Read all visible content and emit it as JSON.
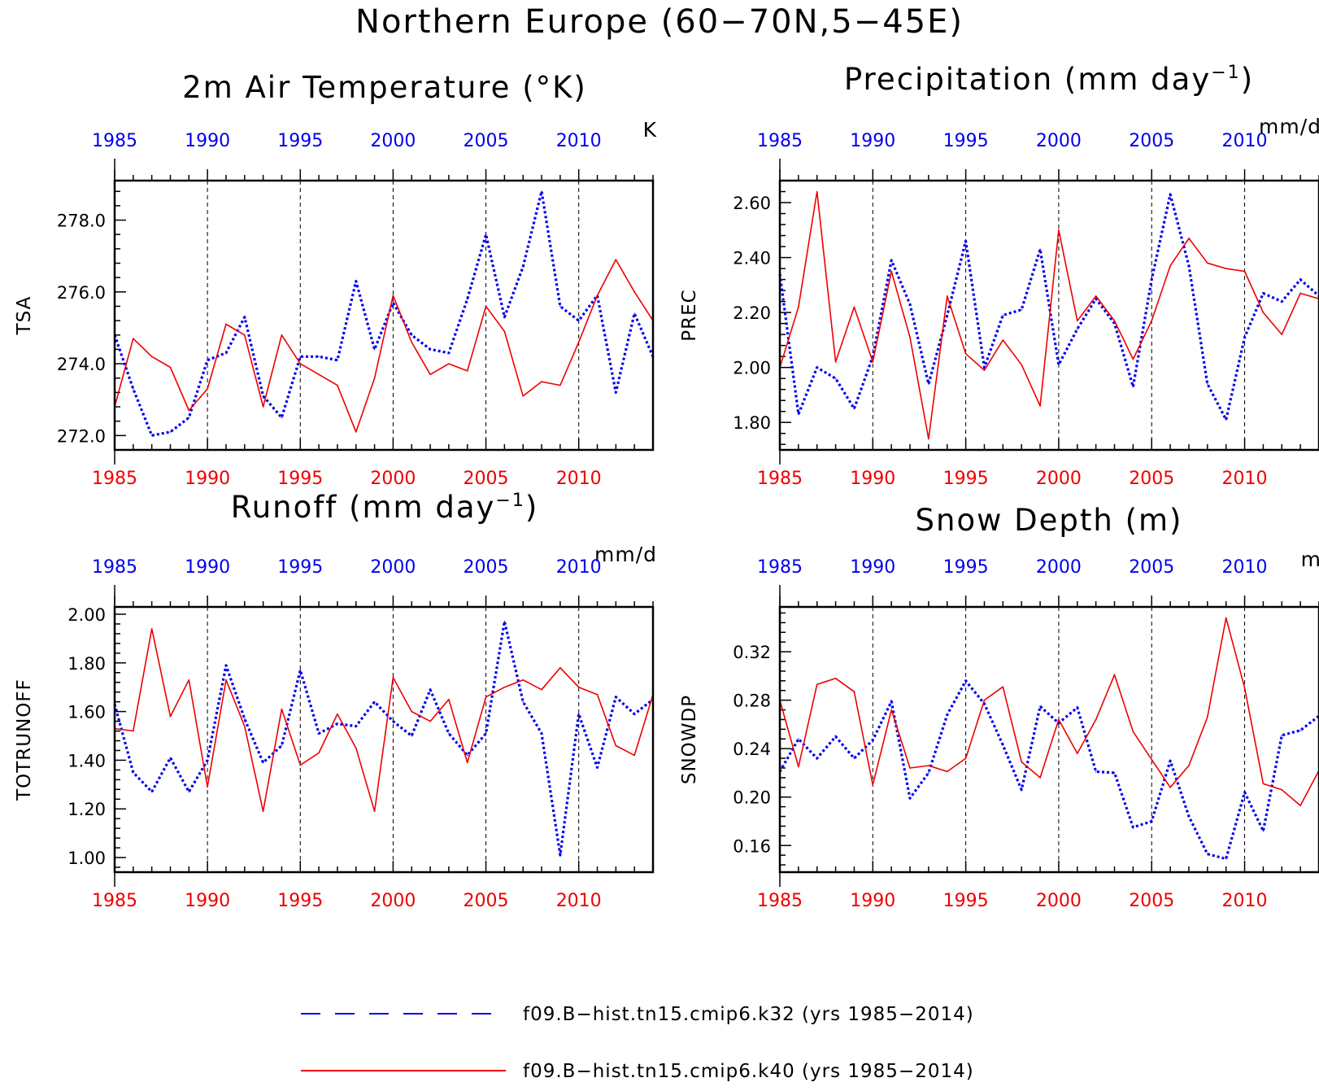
{
  "figure_title": "Northern Europe (60−70N,5−45E)",
  "series_colors": {
    "k32": "#0000ee",
    "k40": "#ee0000"
  },
  "legend": [
    {
      "label": "f09.B−hist.tn15.cmip6.k32 (yrs 1985−2014)",
      "color": "#0000ee",
      "style": "dashed"
    },
    {
      "label": "f09.B−hist.tn15.cmip6.k40 (yrs 1985−2014)",
      "color": "#ee0000",
      "style": "solid"
    }
  ],
  "chart_data": [
    {
      "type": "line",
      "title": "2m Air Temperature (°K)",
      "title_sup": "",
      "title_end": "",
      "units": "K",
      "ylabel": "TSA",
      "x_ticks": [
        1985,
        1990,
        1995,
        2000,
        2005,
        2010
      ],
      "xlim": [
        1985,
        2014
      ],
      "ylim": [
        271.6,
        279.1
      ],
      "y_ticks": [
        "272.0",
        "274.0",
        "276.0",
        "278.0"
      ],
      "y_tick_values": [
        272,
        274,
        276,
        278
      ],
      "x": [
        1985,
        1986,
        1987,
        1988,
        1989,
        1990,
        1991,
        1992,
        1993,
        1994,
        1995,
        1996,
        1997,
        1998,
        1999,
        2000,
        2001,
        2002,
        2003,
        2004,
        2005,
        2006,
        2007,
        2008,
        2009,
        2010,
        2011,
        2012,
        2013,
        2014
      ],
      "series": [
        {
          "name": "f09.B−hist.tn15.cmip6.k32",
          "color": "#0000ee",
          "style": "dotted",
          "values": [
            274.8,
            273.3,
            272.0,
            272.1,
            272.5,
            274.1,
            274.3,
            275.3,
            273.1,
            272.5,
            274.2,
            274.2,
            274.1,
            276.3,
            274.4,
            275.7,
            274.8,
            274.4,
            274.3,
            275.8,
            277.6,
            275.3,
            276.7,
            278.8,
            275.6,
            275.2,
            275.9,
            273.2,
            275.4,
            274.2
          ]
        },
        {
          "name": "f09.B−hist.tn15.cmip6.k40",
          "color": "#ee0000",
          "style": "solid",
          "values": [
            272.8,
            274.7,
            274.2,
            273.9,
            272.7,
            273.3,
            275.1,
            274.8,
            272.8,
            274.8,
            274.0,
            273.7,
            273.4,
            272.1,
            273.6,
            275.9,
            274.6,
            273.7,
            274.0,
            273.8,
            275.6,
            274.9,
            273.1,
            273.5,
            273.4,
            274.6,
            275.9,
            276.9,
            276.0,
            275.2
          ]
        }
      ]
    },
    {
      "type": "line",
      "title": "Precipitation (mm day",
      "title_sup": "−1",
      "title_end": ")",
      "units": "mm/d",
      "ylabel": "PREC",
      "x_ticks": [
        1985,
        1990,
        1995,
        2000,
        2005,
        2010
      ],
      "xlim": [
        1985,
        2014
      ],
      "ylim": [
        1.7,
        2.68
      ],
      "y_ticks": [
        "1.80",
        "2.00",
        "2.20",
        "2.40",
        "2.60"
      ],
      "y_tick_values": [
        1.8,
        2.0,
        2.2,
        2.4,
        2.6
      ],
      "x": [
        1985,
        1986,
        1987,
        1988,
        1989,
        1990,
        1991,
        1992,
        1993,
        1994,
        1995,
        1996,
        1997,
        1998,
        1999,
        2000,
        2001,
        2002,
        2003,
        2004,
        2005,
        2006,
        2007,
        2008,
        2009,
        2010,
        2011,
        2012,
        2013,
        2014
      ],
      "series": [
        {
          "name": "f09.B−hist.tn15.cmip6.k32",
          "color": "#0000ee",
          "style": "dotted",
          "values": [
            2.34,
            1.83,
            2.0,
            1.96,
            1.85,
            2.04,
            2.39,
            2.23,
            1.94,
            2.19,
            2.46,
            2.0,
            2.19,
            2.21,
            2.43,
            2.01,
            2.14,
            2.25,
            2.16,
            1.93,
            2.32,
            2.63,
            2.37,
            1.94,
            1.81,
            2.11,
            2.27,
            2.24,
            2.32,
            2.26
          ]
        },
        {
          "name": "f09.B−hist.tn15.cmip6.k40",
          "color": "#ee0000",
          "style": "solid",
          "values": [
            2.0,
            2.22,
            2.64,
            2.02,
            2.22,
            2.02,
            2.35,
            2.11,
            1.74,
            2.26,
            2.05,
            1.99,
            2.1,
            2.01,
            1.86,
            2.5,
            2.17,
            2.26,
            2.17,
            2.03,
            2.17,
            2.37,
            2.47,
            2.38,
            2.36,
            2.35,
            2.2,
            2.12,
            2.27,
            2.25
          ]
        }
      ]
    },
    {
      "type": "line",
      "title": "Runoff (mm day",
      "title_sup": "−1",
      "title_end": ")",
      "units": "mm/d",
      "ylabel": "TOTRUNOFF",
      "x_ticks": [
        1985,
        1990,
        1995,
        2000,
        2005,
        2010
      ],
      "xlim": [
        1985,
        2014
      ],
      "ylim": [
        0.94,
        2.03
      ],
      "y_ticks": [
        "1.00",
        "1.20",
        "1.40",
        "1.60",
        "1.80",
        "2.00"
      ],
      "y_tick_values": [
        1.0,
        1.2,
        1.4,
        1.6,
        1.8,
        2.0
      ],
      "x": [
        1985,
        1986,
        1987,
        1988,
        1989,
        1990,
        1991,
        1992,
        1993,
        1994,
        1995,
        1996,
        1997,
        1998,
        1999,
        2000,
        2001,
        2002,
        2003,
        2004,
        2005,
        2006,
        2007,
        2008,
        2009,
        2010,
        2011,
        2012,
        2013,
        2014
      ],
      "series": [
        {
          "name": "f09.B−hist.tn15.cmip6.k32",
          "color": "#0000ee",
          "style": "dotted",
          "values": [
            1.63,
            1.35,
            1.27,
            1.41,
            1.27,
            1.4,
            1.79,
            1.57,
            1.39,
            1.46,
            1.77,
            1.51,
            1.55,
            1.54,
            1.64,
            1.56,
            1.5,
            1.69,
            1.51,
            1.42,
            1.51,
            1.97,
            1.64,
            1.51,
            1.01,
            1.59,
            1.37,
            1.66,
            1.59,
            1.65
          ]
        },
        {
          "name": "f09.B−hist.tn15.cmip6.k40",
          "color": "#ee0000",
          "style": "solid",
          "values": [
            1.53,
            1.52,
            1.94,
            1.58,
            1.73,
            1.29,
            1.73,
            1.54,
            1.19,
            1.61,
            1.38,
            1.43,
            1.59,
            1.45,
            1.19,
            1.74,
            1.6,
            1.56,
            1.65,
            1.39,
            1.66,
            1.7,
            1.73,
            1.69,
            1.78,
            1.7,
            1.67,
            1.46,
            1.42,
            1.67
          ]
        }
      ]
    },
    {
      "type": "line",
      "title": "Snow Depth (m)",
      "title_sup": "",
      "title_end": "",
      "units": "m",
      "ylabel": "SNOWDP",
      "x_ticks": [
        1985,
        1990,
        1995,
        2000,
        2005,
        2010
      ],
      "xlim": [
        1985,
        2014
      ],
      "ylim": [
        0.138,
        0.357
      ],
      "y_ticks": [
        "0.16",
        "0.20",
        "0.24",
        "0.28",
        "0.32"
      ],
      "y_tick_values": [
        0.16,
        0.2,
        0.24,
        0.28,
        0.32
      ],
      "x": [
        1985,
        1986,
        1987,
        1988,
        1989,
        1990,
        1991,
        1992,
        1993,
        1994,
        1995,
        1996,
        1997,
        1998,
        1999,
        2000,
        2001,
        2002,
        2003,
        2004,
        2005,
        2006,
        2007,
        2008,
        2009,
        2010,
        2011,
        2012,
        2013,
        2014
      ],
      "series": [
        {
          "name": "f09.B−hist.tn15.cmip6.k32",
          "color": "#0000ee",
          "style": "dotted",
          "values": [
            0.221,
            0.248,
            0.232,
            0.25,
            0.232,
            0.247,
            0.279,
            0.199,
            0.22,
            0.268,
            0.296,
            0.277,
            0.243,
            0.206,
            0.275,
            0.261,
            0.274,
            0.221,
            0.22,
            0.175,
            0.18,
            0.23,
            0.184,
            0.153,
            0.149,
            0.204,
            0.172,
            0.251,
            0.255,
            0.267
          ]
        },
        {
          "name": "f09.B−hist.tn15.cmip6.k40",
          "color": "#ee0000",
          "style": "solid",
          "values": [
            0.28,
            0.225,
            0.293,
            0.298,
            0.287,
            0.21,
            0.272,
            0.224,
            0.226,
            0.221,
            0.232,
            0.28,
            0.291,
            0.229,
            0.216,
            0.264,
            0.236,
            0.264,
            0.301,
            0.254,
            0.231,
            0.208,
            0.226,
            0.266,
            0.348,
            0.29,
            0.211,
            0.206,
            0.193,
            0.222
          ]
        }
      ]
    }
  ]
}
